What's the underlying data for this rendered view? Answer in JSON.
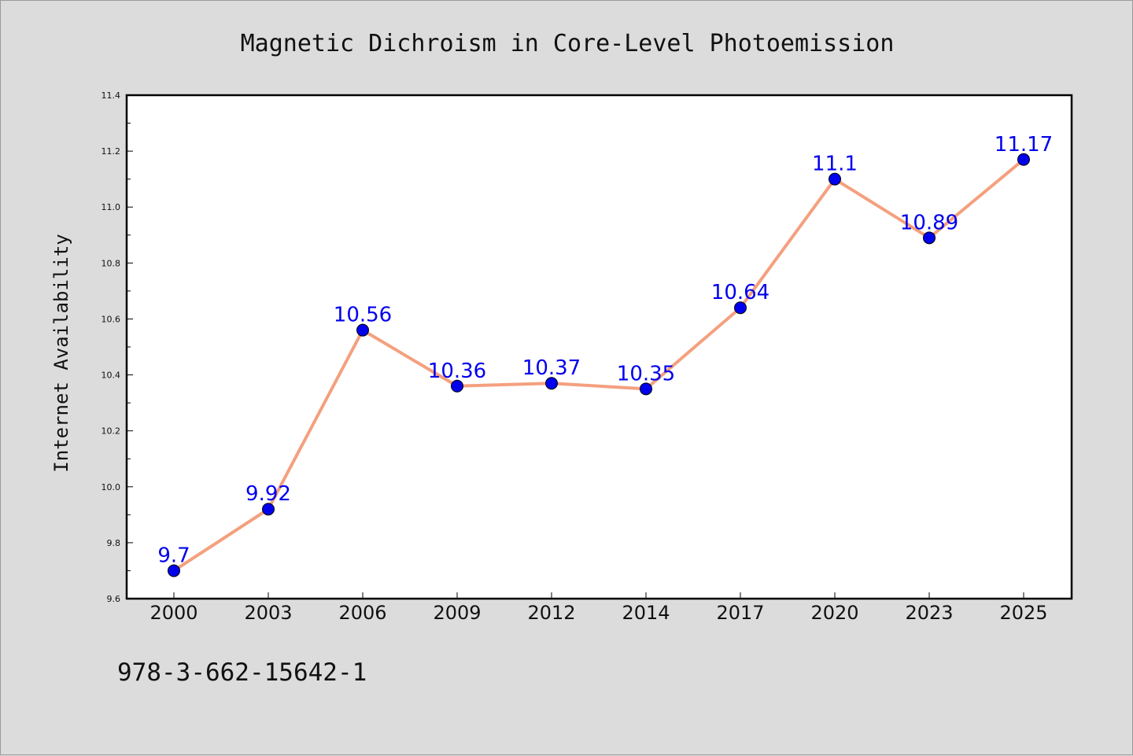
{
  "chart_data": {
    "type": "line",
    "title": "Magnetic Dichroism in Core-Level Photoemission",
    "xlabel": "",
    "ylabel": "Internet Availability",
    "categories": [
      "2000",
      "2003",
      "2006",
      "2009",
      "2012",
      "2014",
      "2017",
      "2020",
      "2023",
      "2025"
    ],
    "series": [
      {
        "values": [
          9.7,
          9.92,
          10.56,
          10.36,
          10.37,
          10.35,
          10.64,
          11.1,
          10.89,
          11.17
        ],
        "data_labels": [
          "9.7",
          "9.92",
          "10.56",
          "10.36",
          "10.37",
          "10.35",
          "10.64",
          "11.1",
          "10.89",
          "11.17"
        ],
        "line_color": "#f4a07e",
        "marker_color": "#0000ee",
        "label_color": "#0000ee"
      }
    ],
    "ylim": [
      9.6,
      11.4
    ],
    "yticks": [
      "9.6",
      "9.8",
      "10.0",
      "10.2",
      "10.4",
      "10.6",
      "10.8",
      "11.0",
      "11.2",
      "11.4"
    ],
    "grid": false,
    "legend": "none"
  },
  "footer": {
    "code": "978-3-662-15642-1"
  },
  "colors": {
    "background": "#dcdcdc",
    "plot_background": "#ffffff",
    "axis": "#000000"
  }
}
